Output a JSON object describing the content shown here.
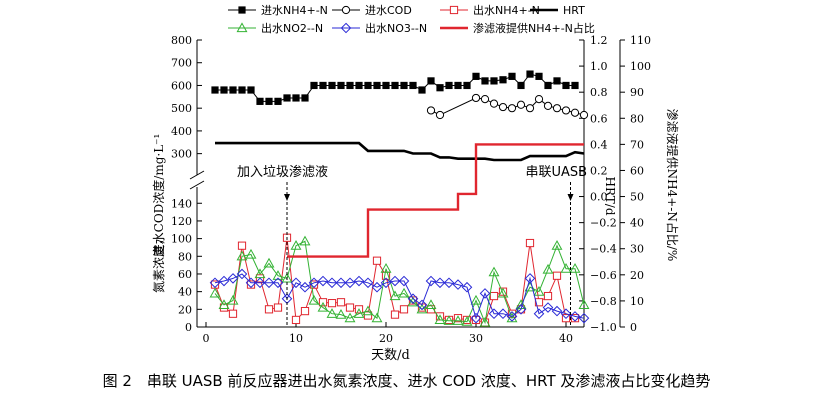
{
  "caption": "图 2　串联 UASB 前反应器进出水氮素浓度、进水 COD 浓度、HRT 及渗滤液占比变化趋势",
  "colors": {
    "nh4_in": "#000000",
    "cod_in": "#000000",
    "nh4_out": "#e0262f",
    "no2_out": "#33b233",
    "no3_out": "#2a2ad6",
    "hrt": "#000000",
    "ratio": "#e0262f"
  },
  "chart_data": {
    "type": "line",
    "xlabel": "天数/d",
    "ylabel_left_upper": "进水COD浓度/mg·L⁻¹",
    "ylabel_left_lower": "氮素浓度，",
    "ylabel_right": "HRT/d",
    "ylabel_right2": "渗滤液提供NH4+-N占比/%",
    "x_ticks": [
      0,
      10,
      20,
      30,
      40
    ],
    "xlim": [
      -1,
      42
    ],
    "y_left_upper_ticks": [
      300,
      400,
      500,
      600,
      700,
      800
    ],
    "y_left_upper_range": [
      250,
      800
    ],
    "y_left_lower_ticks": [
      0,
      20,
      40,
      60,
      80,
      100,
      120,
      140
    ],
    "y_left_lower_range": [
      0,
      155
    ],
    "y_right_ticks": [
      -1.0,
      -0.8,
      -0.6,
      -0.4,
      -0.2,
      0.0,
      0.2,
      0.4,
      0.6,
      0.8,
      1.0,
      1.2
    ],
    "y_right_range": [
      -1.0,
      1.2
    ],
    "y_right2_ticks": [
      0,
      10,
      20,
      30,
      40,
      50,
      60,
      70,
      80,
      90,
      100,
      110
    ],
    "y_right2_range": [
      0,
      110
    ],
    "annotations": [
      {
        "text": "加入垃圾渗滤液",
        "x": 9
      },
      {
        "text": "串联UASB",
        "x": 40.5
      }
    ],
    "legend": [
      {
        "label": "进水NH4+-N",
        "key": "nh4_in"
      },
      {
        "label": "进水COD",
        "key": "cod_in"
      },
      {
        "label": "出水NH4+-N",
        "key": "nh4_out"
      },
      {
        "label": "HRT",
        "key": "hrt"
      },
      {
        "label": "出水NO2--N",
        "key": "no2_out"
      },
      {
        "label": "出水NO3--N",
        "key": "no3_out"
      },
      {
        "label": "渗滤液提供NH4+-N占比",
        "key": "ratio"
      }
    ],
    "series": [
      {
        "key": "nh4_in",
        "name": "进水NH4+-N",
        "axis": "left_upper",
        "marker": "square-filled",
        "x": [
          1,
          2,
          3,
          4,
          5,
          6,
          7,
          8,
          9,
          10,
          11,
          12,
          13,
          14,
          15,
          16,
          17,
          18,
          19,
          20,
          21,
          22,
          23,
          24,
          25,
          26,
          27,
          28,
          29,
          30,
          31,
          32,
          33,
          34,
          35,
          36,
          37,
          38,
          39,
          40,
          41
        ],
        "y": [
          580,
          580,
          580,
          580,
          580,
          530,
          530,
          530,
          545,
          545,
          545,
          600,
          600,
          600,
          600,
          600,
          600,
          600,
          600,
          600,
          600,
          600,
          600,
          580,
          620,
          590,
          600,
          600,
          600,
          640,
          620,
          620,
          625,
          640,
          600,
          650,
          640,
          600,
          620,
          600,
          600
        ]
      },
      {
        "key": "cod_in",
        "name": "进水COD",
        "axis": "left_upper",
        "marker": "circle-open",
        "x": [
          25,
          26,
          30,
          31,
          32,
          33,
          34,
          35,
          36,
          37,
          38,
          39,
          40,
          41,
          42
        ],
        "y": [
          490,
          470,
          545,
          540,
          520,
          505,
          500,
          515,
          500,
          540,
          510,
          500,
          490,
          480,
          470
        ]
      },
      {
        "key": "nh4_out",
        "name": "出水NH4+-N",
        "axis": "left_lower",
        "marker": "square-open",
        "x": [
          1,
          2,
          3,
          4,
          5,
          6,
          7,
          8,
          9,
          10,
          11,
          12,
          13,
          14,
          15,
          16,
          17,
          18,
          19,
          20,
          21,
          22,
          23,
          24,
          25,
          26,
          27,
          28,
          29,
          30,
          31,
          32,
          33,
          34,
          35,
          36,
          37,
          38,
          39,
          40,
          41
        ],
        "y": [
          48,
          22,
          15,
          92,
          48,
          55,
          20,
          22,
          101,
          8,
          18,
          48,
          28,
          27,
          28,
          22,
          20,
          13,
          75,
          58,
          14,
          20,
          30,
          22,
          20,
          12,
          8,
          10,
          8,
          8,
          5,
          35,
          40,
          15,
          20,
          95,
          28,
          35,
          58,
          10,
          10
        ]
      },
      {
        "key": "no2_out",
        "name": "出水NO2--N",
        "axis": "left_lower",
        "marker": "triangle-open",
        "x": [
          1,
          2,
          3,
          4,
          5,
          6,
          7,
          8,
          9,
          10,
          11,
          12,
          13,
          14,
          15,
          16,
          17,
          18,
          19,
          20,
          21,
          22,
          23,
          24,
          25,
          26,
          27,
          28,
          29,
          30,
          31,
          32,
          33,
          34,
          35,
          36,
          37,
          38,
          39,
          40,
          41,
          42
        ],
        "y": [
          38,
          25,
          30,
          80,
          82,
          60,
          72,
          58,
          55,
          92,
          97,
          30,
          22,
          15,
          14,
          10,
          15,
          18,
          10,
          66,
          35,
          38,
          28,
          20,
          25,
          8,
          7,
          7,
          6,
          30,
          5,
          62,
          38,
          10,
          25,
          45,
          40,
          65,
          92,
          66,
          66,
          25
        ]
      },
      {
        "key": "no3_out",
        "name": "出水NO3--N",
        "axis": "left_lower",
        "marker": "diamond-open",
        "x": [
          1,
          2,
          3,
          4,
          5,
          6,
          7,
          8,
          9,
          10,
          11,
          12,
          13,
          14,
          15,
          16,
          17,
          18,
          19,
          20,
          21,
          22,
          23,
          24,
          25,
          26,
          27,
          28,
          29,
          30,
          31,
          32,
          33,
          34,
          35,
          36,
          37,
          38,
          39,
          40,
          41,
          42
        ],
        "y": [
          50,
          52,
          55,
          60,
          50,
          50,
          50,
          50,
          32,
          50,
          45,
          50,
          52,
          50,
          50,
          50,
          52,
          50,
          45,
          50,
          52,
          52,
          32,
          25,
          52,
          50,
          50,
          48,
          45,
          10,
          38,
          15,
          15,
          12,
          20,
          55,
          15,
          22,
          18,
          15,
          12,
          10
        ]
      },
      {
        "key": "hrt",
        "name": "HRT",
        "axis": "right",
        "style": "thick-line",
        "x": [
          1,
          2,
          4,
          6,
          8,
          9,
          10,
          12,
          14,
          16,
          17,
          18,
          19,
          20,
          22,
          23,
          24,
          25,
          26,
          27,
          28,
          29,
          30,
          31,
          32,
          33,
          34,
          35,
          36,
          37,
          38,
          39,
          40,
          41,
          42
        ],
        "y": [
          0.41,
          0.41,
          0.41,
          0.41,
          0.41,
          0.41,
          0.41,
          0.41,
          0.41,
          0.41,
          0.41,
          0.35,
          0.35,
          0.35,
          0.35,
          0.33,
          0.33,
          0.33,
          0.3,
          0.3,
          0.29,
          0.29,
          0.29,
          0.29,
          0.28,
          0.28,
          0.28,
          0.28,
          0.31,
          0.31,
          0.31,
          0.31,
          0.31,
          0.34,
          0.33
        ]
      },
      {
        "key": "ratio",
        "name": "渗滤液提供NH4+-N占比",
        "axis": "right2",
        "style": "step-line",
        "x": [
          9,
          18,
          18,
          28,
          28,
          30,
          30,
          42
        ],
        "y": [
          27,
          27,
          45,
          45,
          51,
          51,
          70,
          70
        ]
      }
    ]
  }
}
